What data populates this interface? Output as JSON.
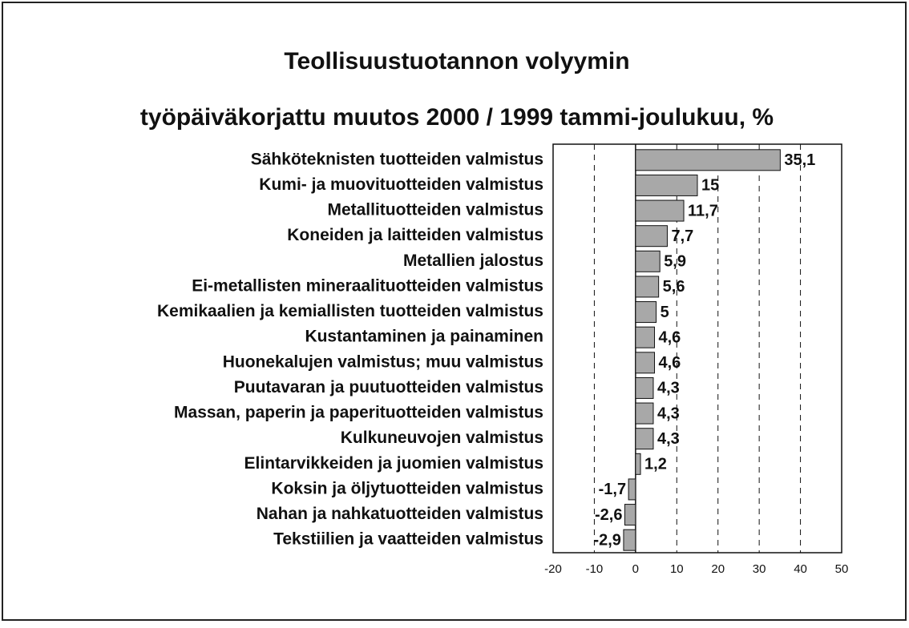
{
  "chart_data": {
    "type": "barh",
    "title": "Teollisuustuotannon volyymin",
    "subtitle": "työpäiväkorjattu muutos 2000 / 1999 tammi-joulukuu, %",
    "categories": [
      "Sähköteknisten tuotteiden valmistus",
      "Kumi- ja muovituotteiden valmistus",
      "Metallituotteiden valmistus",
      "Koneiden ja laitteiden valmistus",
      "Metallien jalostus",
      "Ei-metallisten mineraalituotteiden valmistus",
      "Kemikaalien ja kemiallisten tuotteiden valmistus",
      "Kustantaminen ja painaminen",
      "Huonekalujen valmistus; muu valmistus",
      "Puutavaran ja puutuotteiden valmistus",
      "Massan, paperin ja paperituotteiden valmistus",
      "Kulkuneuvojen valmistus",
      "Elintarvikkeiden ja juomien valmistus",
      "Koksin ja öljytuotteiden valmistus",
      "Nahan ja nahkatuotteiden valmistus",
      "Tekstiilien ja vaatteiden valmistus"
    ],
    "values": [
      35.1,
      15,
      11.7,
      7.7,
      5.9,
      5.6,
      5,
      4.6,
      4.6,
      4.3,
      4.3,
      4.3,
      1.2,
      -1.7,
      -2.6,
      -2.9
    ],
    "value_labels": [
      "35,1",
      "15",
      "11,7",
      "7,7",
      "5,9",
      "5,6",
      "5",
      "4,6",
      "4,6",
      "4,3",
      "4,3",
      "4,3",
      "1,2",
      "-1,7",
      "-2,6",
      "-2,9"
    ],
    "color": "#a8a8a8",
    "xlim": [
      -20,
      50
    ],
    "xticks": [
      -20,
      -10,
      0,
      10,
      20,
      30,
      40,
      50
    ],
    "grid": true
  }
}
